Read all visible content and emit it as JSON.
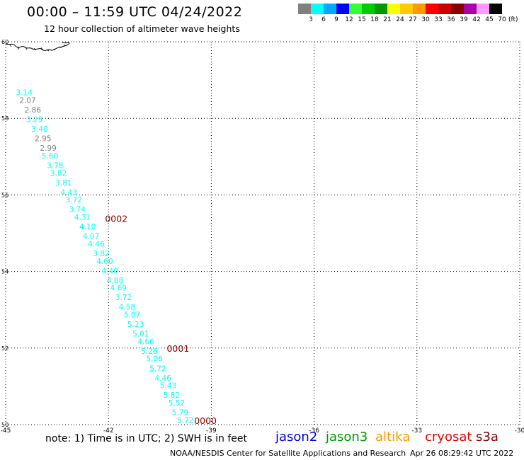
{
  "header": {
    "title": "00:00 – 11:59 UTC 04/24/2022",
    "subtitle": "12 hour collection of altimeter wave heights"
  },
  "color_scale": {
    "unit": "(ft)",
    "bins": [
      {
        "color": "#808080",
        "label": "3"
      },
      {
        "color": "#00ffff",
        "label": "6"
      },
      {
        "color": "#00aaff",
        "label": "9"
      },
      {
        "color": "#0000ff",
        "label": "12"
      },
      {
        "color": "#33ff33",
        "label": "15"
      },
      {
        "color": "#00cc00",
        "label": "18"
      },
      {
        "color": "#009900",
        "label": "21"
      },
      {
        "color": "#ffff00",
        "label": "24"
      },
      {
        "color": "#ffcc00",
        "label": "27"
      },
      {
        "color": "#ff9900",
        "label": "30"
      },
      {
        "color": "#ff0000",
        "label": "33"
      },
      {
        "color": "#cc0000",
        "label": "36"
      },
      {
        "color": "#880000",
        "label": "39"
      },
      {
        "color": "#aa00aa",
        "label": "42"
      },
      {
        "color": "#ff99ff",
        "label": "45"
      },
      {
        "color": "#000000",
        "label": "70"
      }
    ]
  },
  "map": {
    "lon_range": [
      -45,
      -30
    ],
    "lat_range": [
      50,
      60
    ],
    "lon_ticks": [
      "-45",
      "-42",
      "-39",
      "-36",
      "-33",
      "-30"
    ],
    "lat_ticks": [
      "60",
      "58",
      "56",
      "54",
      "52",
      "50"
    ],
    "track_labels": [
      {
        "text": "0002",
        "lon": -42.1,
        "lat": 55.3
      },
      {
        "text": "0001",
        "lon": -40.3,
        "lat": 51.9
      },
      {
        "text": "0000",
        "lon": -39.5,
        "lat": 50.02
      }
    ],
    "observations": [
      {
        "value": "3.14",
        "color": "#00ffff",
        "lon": -44.7,
        "lat": 58.6
      },
      {
        "value": "2.07",
        "color": "#808080",
        "lon": -44.6,
        "lat": 58.4
      },
      {
        "value": "2.86",
        "color": "#808080",
        "lon": -44.45,
        "lat": 58.15
      },
      {
        "value": "3.29",
        "color": "#00ffff",
        "lon": -44.4,
        "lat": 57.9
      },
      {
        "value": "3.40",
        "color": "#00ffff",
        "lon": -44.25,
        "lat": 57.65
      },
      {
        "value": "2.95",
        "color": "#808080",
        "lon": -44.15,
        "lat": 57.4
      },
      {
        "value": "2.99",
        "color": "#808080",
        "lon": -44.0,
        "lat": 57.15
      },
      {
        "value": "5.60",
        "color": "#00ffff",
        "lon": -43.95,
        "lat": 56.95
      },
      {
        "value": "3.78",
        "color": "#00ffff",
        "lon": -43.8,
        "lat": 56.7
      },
      {
        "value": "3.82",
        "color": "#00ffff",
        "lon": -43.7,
        "lat": 56.5
      },
      {
        "value": "3.81",
        "color": "#00ffff",
        "lon": -43.55,
        "lat": 56.25
      },
      {
        "value": "4.43",
        "color": "#00ffff",
        "lon": -43.4,
        "lat": 56.0
      },
      {
        "value": "3.72",
        "color": "#00ffff",
        "lon": -43.25,
        "lat": 55.8
      },
      {
        "value": "3.74",
        "color": "#00ffff",
        "lon": -43.15,
        "lat": 55.55
      },
      {
        "value": "4.31",
        "color": "#00ffff",
        "lon": -43.0,
        "lat": 55.35
      },
      {
        "value": "4.10",
        "color": "#00ffff",
        "lon": -42.85,
        "lat": 55.1
      },
      {
        "value": "4.07",
        "color": "#00ffff",
        "lon": -42.75,
        "lat": 54.85
      },
      {
        "value": "4.46",
        "color": "#00ffff",
        "lon": -42.6,
        "lat": 54.65
      },
      {
        "value": "3.82",
        "color": "#00ffff",
        "lon": -42.45,
        "lat": 54.4
      },
      {
        "value": "4.60",
        "color": "#00ffff",
        "lon": -42.35,
        "lat": 54.2
      },
      {
        "value": "4.40",
        "color": "#00ffff",
        "lon": -42.2,
        "lat": 53.95
      },
      {
        "value": "4.88",
        "color": "#00ffff",
        "lon": -42.05,
        "lat": 53.7
      },
      {
        "value": "4.69",
        "color": "#00ffff",
        "lon": -41.95,
        "lat": 53.5
      },
      {
        "value": "3.72",
        "color": "#00ffff",
        "lon": -41.8,
        "lat": 53.25
      },
      {
        "value": "4.58",
        "color": "#00ffff",
        "lon": -41.7,
        "lat": 53.0
      },
      {
        "value": "5.07",
        "color": "#00ffff",
        "lon": -41.55,
        "lat": 52.8
      },
      {
        "value": "5.23",
        "color": "#00ffff",
        "lon": -41.45,
        "lat": 52.55
      },
      {
        "value": "5.01",
        "color": "#00ffff",
        "lon": -41.3,
        "lat": 52.3
      },
      {
        "value": "4.66",
        "color": "#00ffff",
        "lon": -41.15,
        "lat": 52.1
      },
      {
        "value": "5.26",
        "color": "#00ffff",
        "lon": -41.05,
        "lat": 51.85
      },
      {
        "value": "5.06",
        "color": "#00ffff",
        "lon": -40.9,
        "lat": 51.65
      },
      {
        "value": "5.72",
        "color": "#00ffff",
        "lon": -40.8,
        "lat": 51.4
      },
      {
        "value": "4.46",
        "color": "#00ffff",
        "lon": -40.65,
        "lat": 51.15
      },
      {
        "value": "5.43",
        "color": "#00ffff",
        "lon": -40.5,
        "lat": 50.95
      },
      {
        "value": "5.82",
        "color": "#00ffff",
        "lon": -40.4,
        "lat": 50.7
      },
      {
        "value": "5.52",
        "color": "#00ffff",
        "lon": -40.25,
        "lat": 50.5
      },
      {
        "value": "5.79",
        "color": "#00ffff",
        "lon": -40.15,
        "lat": 50.25
      },
      {
        "value": "5.72",
        "color": "#00ffff",
        "lon": -40.0,
        "lat": 50.05
      }
    ]
  },
  "footer": {
    "note": "note: 1) Time is in UTC; 2) SWH is in feet",
    "satellites": [
      {
        "name": "jason2",
        "color": "#0000ee"
      },
      {
        "name": "jason3",
        "color": "#009900"
      },
      {
        "name": "altika",
        "color": "#ff9900"
      },
      {
        "name": "cryosat",
        "color": "#ee0000"
      },
      {
        "name": "s3a",
        "color": "#880000"
      }
    ],
    "credit": "NOAA/NESDIS Center for Satellite Applications and Research",
    "timestamp": "Apr 26 08:29:42 UTC 2022"
  }
}
